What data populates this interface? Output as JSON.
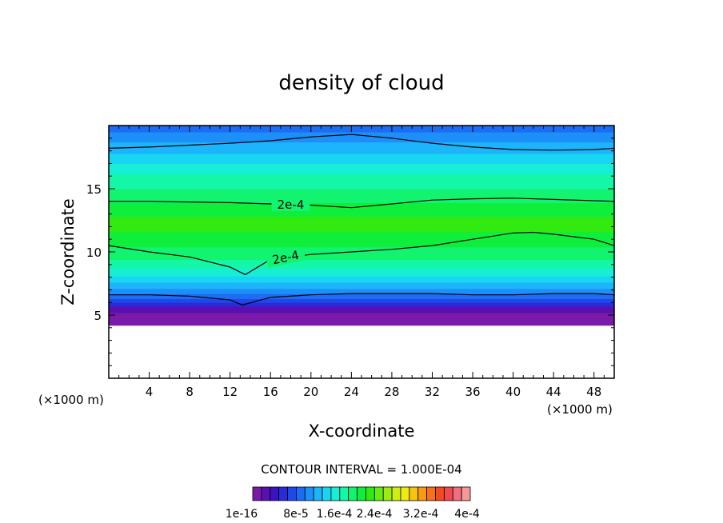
{
  "chart_data": {
    "type": "heatmap",
    "title": "density of cloud",
    "xlabel": "X-coordinate",
    "ylabel": "Z-coordinate",
    "x_unit_left": "(×1000 m)",
    "x_unit_right": "(×1000 m)",
    "xlim": [
      0,
      50
    ],
    "ylim": [
      0,
      20
    ],
    "x_ticks": [
      4,
      8,
      12,
      16,
      20,
      24,
      28,
      32,
      36,
      40,
      44,
      48
    ],
    "y_ticks": [
      5,
      10,
      15
    ],
    "contour_interval_text": "CONTOUR INTERVAL = 1.000E-04",
    "contour_labels": [
      "2e-4",
      "2e-4"
    ],
    "contours": [
      {
        "label": "2e-4",
        "x": [
          0,
          4,
          8,
          12,
          16,
          20,
          24,
          28,
          32,
          36,
          40,
          44,
          48,
          50
        ],
        "y": [
          14.0,
          14.0,
          13.95,
          13.9,
          13.8,
          13.7,
          13.5,
          13.8,
          14.1,
          14.2,
          14.25,
          14.15,
          14.05,
          14.0
        ]
      },
      {
        "label": "2e-4",
        "x": [
          0,
          4,
          8,
          12,
          13.5,
          16,
          20,
          24,
          28,
          32,
          36,
          40,
          42,
          44,
          48,
          50
        ],
        "y": [
          10.5,
          10.0,
          9.6,
          8.8,
          8.2,
          9.4,
          9.8,
          10.0,
          10.2,
          10.5,
          11.0,
          11.5,
          11.55,
          11.4,
          11.0,
          10.5
        ]
      },
      {
        "label": "",
        "x": [
          0,
          4,
          8,
          12,
          16,
          20,
          24,
          28,
          32,
          36,
          40,
          44,
          48,
          50
        ],
        "y": [
          18.2,
          18.3,
          18.45,
          18.6,
          18.8,
          19.1,
          19.3,
          19.0,
          18.6,
          18.3,
          18.1,
          18.05,
          18.1,
          18.2
        ]
      },
      {
        "label": "",
        "x": [
          0,
          4,
          8,
          12,
          13.2,
          16,
          20,
          24,
          28,
          32,
          36,
          40,
          44,
          48,
          50
        ],
        "y": [
          6.6,
          6.6,
          6.5,
          6.2,
          5.8,
          6.4,
          6.6,
          6.7,
          6.7,
          6.7,
          6.6,
          6.6,
          6.7,
          6.7,
          6.6
        ]
      }
    ],
    "colorbar": {
      "labels": [
        "1e-16",
        "8e-5",
        "1.6e-4",
        "2.4e-4",
        "3.2e-4",
        "4e-4"
      ],
      "colors": [
        "#7a1aa8",
        "#5a0fb0",
        "#3a12c0",
        "#2a2ad8",
        "#1e48ea",
        "#1c6cf4",
        "#1c90f8",
        "#1cb4fa",
        "#18d6f2",
        "#16eed6",
        "#14f6a8",
        "#12f470",
        "#10ee3c",
        "#30ea10",
        "#66ec10",
        "#9cec10",
        "#ccee10",
        "#f0ea10",
        "#f8c410",
        "#f89a12",
        "#f87018",
        "#f24a22",
        "#f04a50",
        "#f07080",
        "#f49898"
      ]
    },
    "bands": [
      {
        "z": [
          0.0,
          4.2
        ],
        "color": "#ffffff"
      },
      {
        "z": [
          4.2,
          5.2
        ],
        "color": "#7a1aa8"
      },
      {
        "z": [
          5.2,
          5.7
        ],
        "color": "#5a0fb0"
      },
      {
        "z": [
          5.7,
          6.0
        ],
        "color": "#2a2ad8"
      },
      {
        "z": [
          6.0,
          6.3
        ],
        "color": "#1e48ea"
      },
      {
        "z": [
          6.3,
          6.7
        ],
        "color": "#1c6cf4"
      },
      {
        "z": [
          6.7,
          7.1
        ],
        "color": "#1c90f8"
      },
      {
        "z": [
          7.1,
          7.6
        ],
        "color": "#1cb4fa"
      },
      {
        "z": [
          7.6,
          8.1
        ],
        "color": "#18d6f2"
      },
      {
        "z": [
          8.1,
          8.7
        ],
        "color": "#16eed6"
      },
      {
        "z": [
          8.7,
          9.4
        ],
        "color": "#14f6a8"
      },
      {
        "z": [
          9.4,
          10.4
        ],
        "color": "#12f470"
      },
      {
        "z": [
          10.4,
          11.6
        ],
        "color": "#10ee3c"
      },
      {
        "z": [
          11.6,
          12.8
        ],
        "color": "#30ea10"
      },
      {
        "z": [
          12.8,
          13.9
        ],
        "color": "#10ee3c"
      },
      {
        "z": [
          13.9,
          15.0
        ],
        "color": "#12f470"
      },
      {
        "z": [
          15.0,
          16.2
        ],
        "color": "#14f6a8"
      },
      {
        "z": [
          16.2,
          17.0
        ],
        "color": "#16eed6"
      },
      {
        "z": [
          17.0,
          17.8
        ],
        "color": "#18d6f2"
      },
      {
        "z": [
          17.8,
          18.7
        ],
        "color": "#1cb4fa"
      },
      {
        "z": [
          18.7,
          19.5
        ],
        "color": "#1c90f8"
      },
      {
        "z": [
          19.5,
          20.0
        ],
        "color": "#1c6cf4"
      }
    ],
    "legend_position": "bottom",
    "grid": false
  }
}
